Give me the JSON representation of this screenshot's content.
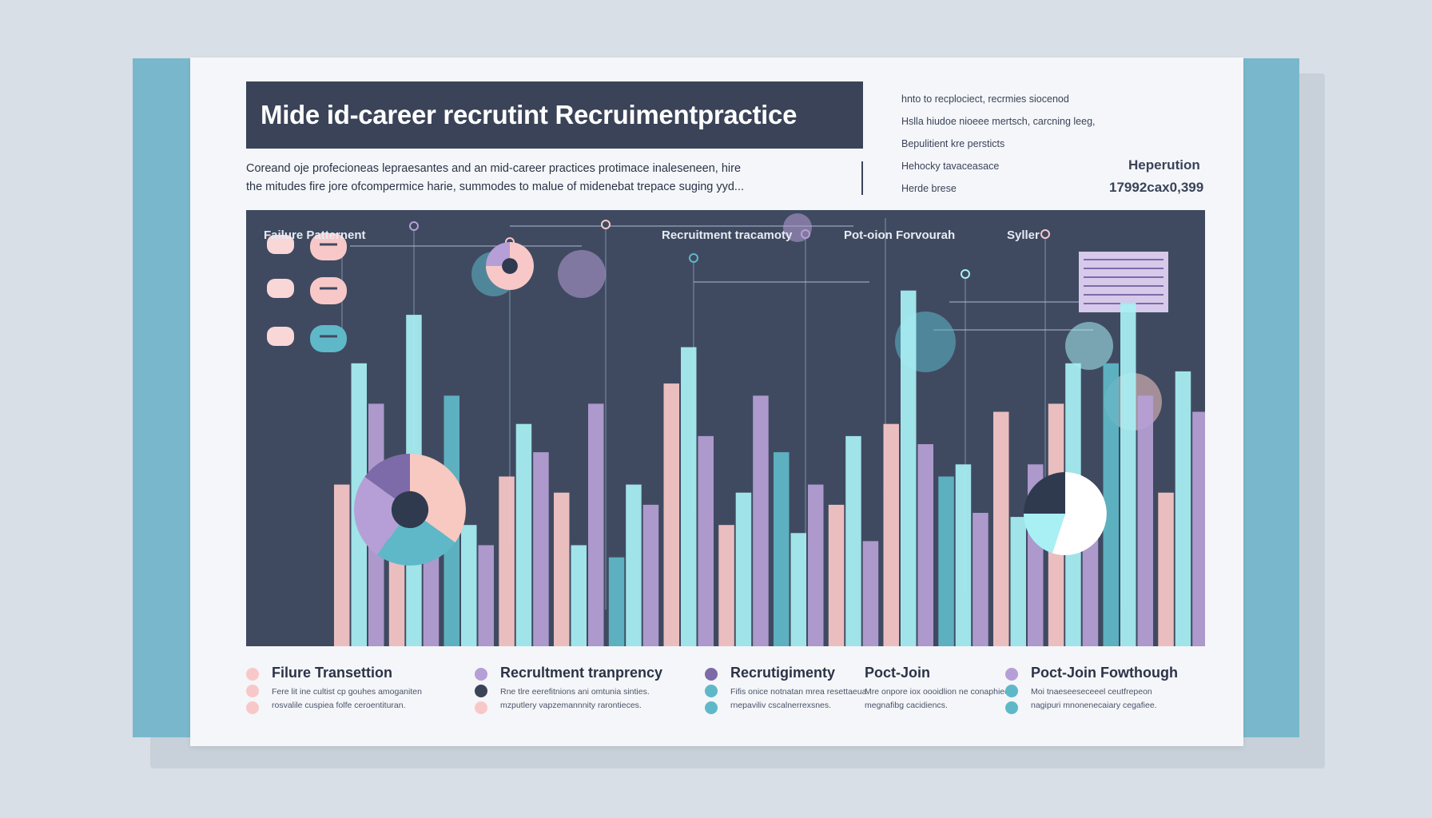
{
  "header": {
    "title": "Mide id-career recrutint Recruimentpractice",
    "subtitle_line1": "Coreand oje profecioneas lepraesantes and an mid-career practices protimace inaleseneen, hire",
    "subtitle_line2": "the mitudes fire jore ofcompermice harie, summodes to malue of midenebat trepace suging yyd..."
  },
  "side_notes": [
    "hnto to recplociect, recrmies siocenod",
    "Hslla hiudoe nioeee mertsch, carcning leeg,",
    "Bepulitient kre persticts",
    "Hehocky tavaceasace",
    "Herde brese"
  ],
  "stat": {
    "label": "Heperution",
    "value": "17992cax0,399"
  },
  "colors": {
    "panel": "#3f4a60",
    "cyan": "#a8f0f4",
    "teal": "#5fb8c8",
    "lavender": "#b69fd6",
    "purple": "#7d6aa8",
    "pink": "#f8c8c8",
    "peach": "#f7c9c1"
  },
  "chart_data": {
    "type": "bar",
    "title": "Mide id-career recrutint Recruimentpractice",
    "section_labels": [
      "Failure Patternent",
      "Recruitment tracamoty",
      "Pot-oion Forvourah",
      "Syller"
    ],
    "series": [
      {
        "values": [
          40,
          45,
          62,
          42,
          38,
          22,
          65,
          30,
          48,
          35,
          55,
          42,
          58,
          60,
          70,
          38
        ]
      },
      {
        "values": [
          70,
          82,
          30,
          55,
          25,
          40,
          74,
          38,
          28,
          52,
          88,
          45,
          32,
          70,
          85,
          68
        ]
      },
      {
        "values": [
          60,
          45,
          25,
          48,
          60,
          35,
          52,
          62,
          40,
          26,
          50,
          33,
          45,
          38,
          62,
          58
        ]
      }
    ],
    "pies": [
      {
        "values": [
          35,
          25,
          25,
          15
        ],
        "donut": true
      },
      {
        "values": [
          75,
          25
        ],
        "donut": true
      },
      {
        "values": [
          55,
          20,
          25
        ],
        "donut": false
      }
    ]
  },
  "legend": [
    {
      "title": "Filure Transettion",
      "line1": "Fere lit ine cultist cp gouhes amoganiten",
      "line2": "rosvalile cuspiea folfe ceroentituran."
    },
    {
      "title": "Recrultment tranprency",
      "line1": "Rne tlre eerefitnions ani omtunia sinties.",
      "line2": "mzputlery vapzemannnity rarontieces."
    },
    {
      "title": "Recrutigimenty",
      "line1": "Fifis onice notnatan mrea resettaeua",
      "line2": "rnepaviliv cscalnerrexsnes."
    },
    {
      "title": "Poct-Join",
      "line1": "Mre onpore iox oooidlion ne conaphiec",
      "line2": "megnafibg cacidiencs."
    },
    {
      "title": "Poct-Join Fowthough",
      "line1": "Moi tnaeseeseceeel ceutfrepeon",
      "line2": "nagipuri mnonenecaiary cegafiee."
    }
  ]
}
